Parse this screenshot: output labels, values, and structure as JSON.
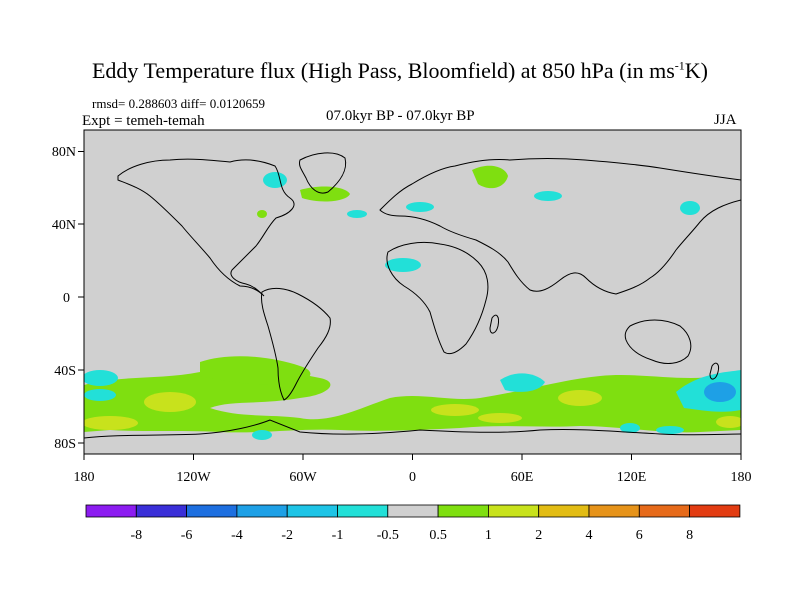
{
  "title": {
    "main": "Eddy Temperature flux (High Pass, Bloomfield) at 850 hPa (in ms",
    "sup": "-1",
    "end": "K)"
  },
  "stats": "rmsd= 0.288603 diff= 0.0120659",
  "experiment": "Expt = temeh-temah",
  "period": "07.0kyr BP - 07.0kyr BP",
  "season": "JJA",
  "lat_ticks": [
    "80N",
    "40N",
    "0",
    "40S",
    "80S"
  ],
  "lon_ticks": [
    "180",
    "120W",
    "60W",
    "0",
    "60E",
    "120E",
    "180"
  ],
  "legend": {
    "labels": [
      "-8",
      "-6",
      "-4",
      "-2",
      "-1",
      "-0.5",
      "0.5",
      "1",
      "2",
      "4",
      "6",
      "8"
    ],
    "colors": [
      "#8c1cf0",
      "#3a2fd8",
      "#1d6fe0",
      "#1ea0e6",
      "#1ec4e6",
      "#22e0d8",
      "#d0d0d0",
      "#7fdf10",
      "#c8e21c",
      "#e2bc14",
      "#e6931a",
      "#e66a1a",
      "#e23c12"
    ]
  },
  "map": {
    "land_color": "#d0d0d0"
  }
}
